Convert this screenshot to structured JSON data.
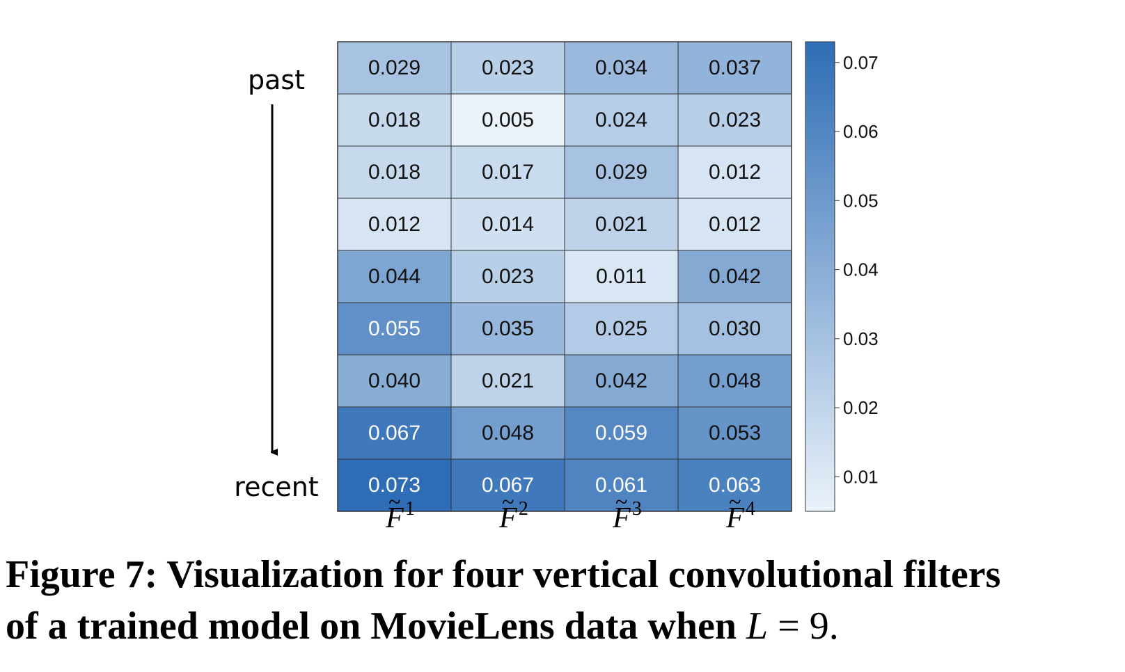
{
  "chart_data": {
    "type": "heatmap",
    "row_labels": [
      "past",
      "recent"
    ],
    "column_labels": [
      {
        "base": "F",
        "superscript": "1"
      },
      {
        "base": "F",
        "superscript": "2"
      },
      {
        "base": "F",
        "superscript": "3"
      },
      {
        "base": "F",
        "superscript": "4"
      }
    ],
    "values": [
      [
        0.029,
        0.023,
        0.034,
        0.037
      ],
      [
        0.018,
        0.005,
        0.024,
        0.023
      ],
      [
        0.018,
        0.017,
        0.029,
        0.012
      ],
      [
        0.012,
        0.014,
        0.021,
        0.012
      ],
      [
        0.044,
        0.023,
        0.011,
        0.042
      ],
      [
        0.055,
        0.035,
        0.025,
        0.03
      ],
      [
        0.04,
        0.021,
        0.042,
        0.048
      ],
      [
        0.067,
        0.048,
        0.059,
        0.053
      ],
      [
        0.073,
        0.067,
        0.061,
        0.063
      ]
    ],
    "value_format": "0.000",
    "colorbar": {
      "range": [
        0.005,
        0.073
      ],
      "ticks": [
        0.01,
        0.02,
        0.03,
        0.04,
        0.05,
        0.06,
        0.07
      ],
      "tick_labels": [
        "0.01",
        "0.02",
        "0.03",
        "0.04",
        "0.05",
        "0.06",
        "0.07"
      ],
      "color_low": "#eaf2fa",
      "color_high": "#2e6db5"
    },
    "grid": false
  },
  "caption": {
    "line1": "Figure 7: Visualization for four vertical convolutional filters",
    "line2_prefix": "of a trained model on MovieLens data when ",
    "line2_var": "L",
    "line2_eq": " = 9."
  }
}
